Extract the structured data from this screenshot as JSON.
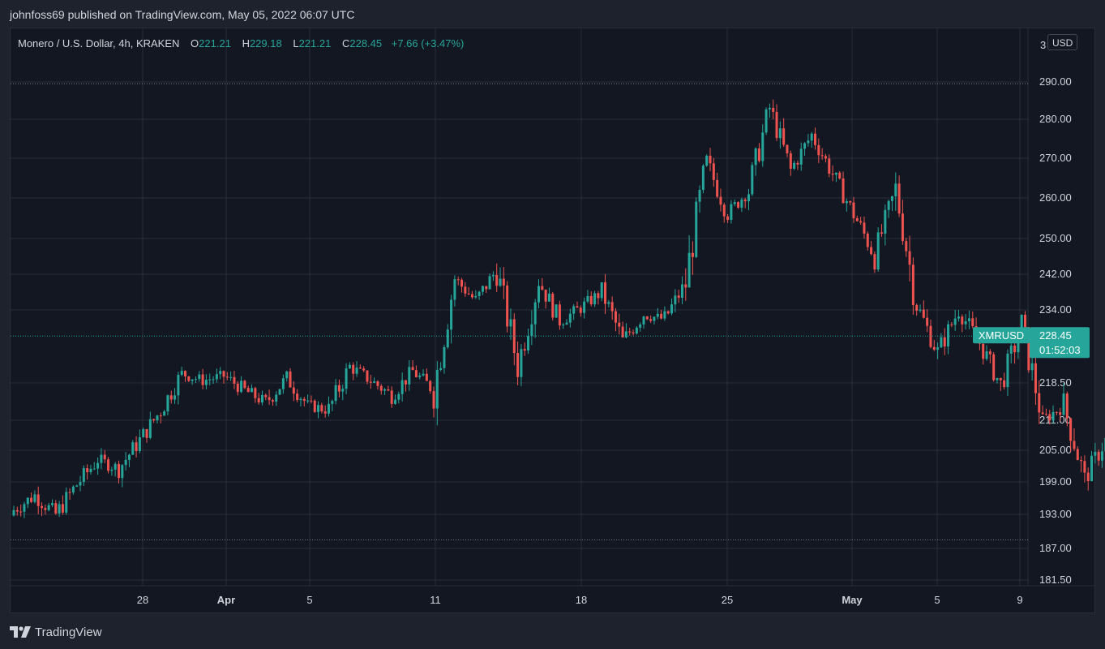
{
  "header": {
    "published_line": "johnfoss69 published on TradingView.com, May 05, 2022 06:07 UTC"
  },
  "legend": {
    "symbol": "Monero / U.S. Dollar, 4h, KRAKEN",
    "open_label": "O",
    "open": "221.21",
    "high_label": "H",
    "high": "229.18",
    "low_label": "L",
    "low": "221.21",
    "close_label": "C",
    "close": "228.45",
    "change": "+7.66 (+3.47%)"
  },
  "currency_button": "USD",
  "footer": {
    "brand": "TradingView"
  },
  "colors": {
    "up": "#26a69a",
    "down": "#ef5350",
    "background": "#131722",
    "grid": "#2a2e39",
    "axis_text": "#d1d4dc"
  },
  "chart_data": {
    "type": "candlestick",
    "symbol": "XMRUSD",
    "timeframe": "4h",
    "x_ticks": [
      "28",
      "Apr",
      "5",
      "11",
      "18",
      "25",
      "May",
      "5",
      "9"
    ],
    "y_ticks": [
      "290.00",
      "280.00",
      "270.00",
      "260.00",
      "250.00",
      "242.00",
      "234.00",
      "218.50",
      "211.00",
      "205.00",
      "199.00",
      "193.00",
      "187.00",
      "181.50"
    ],
    "y_range": [
      180.0,
      303.0
    ],
    "top_partial_tick": "3",
    "price_label": {
      "symbol": "XMRUSD",
      "price": "228.45",
      "countdown": "01:52:03"
    },
    "last_price": 228.45,
    "reference_lines": [
      289.5,
      188.5
    ],
    "path": [
      {
        "day": 0,
        "p": 193.8
      },
      {
        "day": 1,
        "p": 196.5
      },
      {
        "day": 2,
        "p": 193.0
      },
      {
        "day": 3,
        "p": 198.5
      },
      {
        "day": 4,
        "p": 203.2
      },
      {
        "day": 5,
        "p": 201.5
      },
      {
        "day": 6,
        "p": 207.0
      },
      {
        "day": 7,
        "p": 213.0
      },
      {
        "day": 8,
        "p": 220.5
      },
      {
        "day": 9,
        "p": 219.0
      },
      {
        "day": 10,
        "p": 220.0
      },
      {
        "day": 11,
        "p": 217.0
      },
      {
        "day": 12,
        "p": 214.5
      },
      {
        "day": 13,
        "p": 219.5
      },
      {
        "day": 14,
        "p": 214.0
      },
      {
        "day": 15,
        "p": 213.0
      },
      {
        "day": 16,
        "p": 222.0
      },
      {
        "day": 17,
        "p": 219.0
      },
      {
        "day": 18,
        "p": 216.0
      },
      {
        "day": 19,
        "p": 221.0
      },
      {
        "day": 20,
        "p": 217.0
      },
      {
        "day": 21,
        "p": 241.0
      },
      {
        "day": 22,
        "p": 236.0
      },
      {
        "day": 23,
        "p": 243.0
      },
      {
        "day": 24,
        "p": 222.0
      },
      {
        "day": 25,
        "p": 240.5
      },
      {
        "day": 26,
        "p": 231.5
      },
      {
        "day": 27,
        "p": 234.5
      },
      {
        "day": 28,
        "p": 238.0
      },
      {
        "day": 29,
        "p": 227.5
      },
      {
        "day": 30,
        "p": 233.0
      },
      {
        "day": 31,
        "p": 232.0
      },
      {
        "day": 32,
        "p": 240.0
      },
      {
        "day": 33,
        "p": 269.0
      },
      {
        "day": 34,
        "p": 256.0
      },
      {
        "day": 35,
        "p": 262.0
      },
      {
        "day": 36,
        "p": 283.0
      },
      {
        "day": 37,
        "p": 267.0
      },
      {
        "day": 38,
        "p": 276.0
      },
      {
        "day": 39,
        "p": 266.0
      },
      {
        "day": 40,
        "p": 256.0
      },
      {
        "day": 41,
        "p": 246.0
      },
      {
        "day": 42,
        "p": 262.0
      },
      {
        "day": 43,
        "p": 235.0
      },
      {
        "day": 44,
        "p": 225.0
      },
      {
        "day": 45,
        "p": 234.0
      },
      {
        "day": 46,
        "p": 227.0
      },
      {
        "day": 47,
        "p": 218.0
      },
      {
        "day": 48,
        "p": 230.5
      },
      {
        "day": 49,
        "p": 211.0
      },
      {
        "day": 50,
        "p": 214.0
      },
      {
        "day": 51,
        "p": 199.5
      },
      {
        "day": 52,
        "p": 207.0
      },
      {
        "day": 53,
        "p": 212.0
      },
      {
        "day": 54,
        "p": 221.5
      },
      {
        "day": 54.33,
        "p": 228.45
      }
    ]
  }
}
